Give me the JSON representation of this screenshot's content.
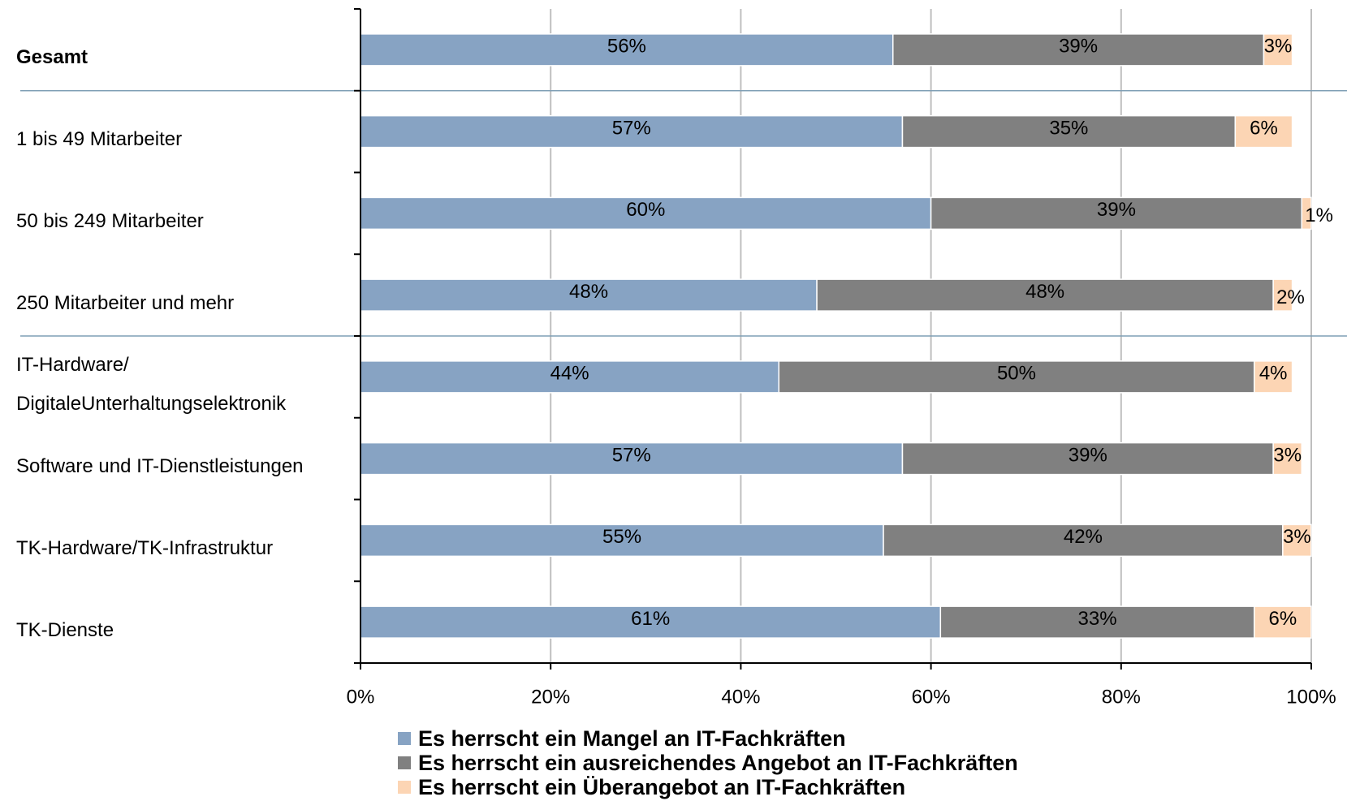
{
  "chart_data": {
    "type": "stacked-bar-horizontal",
    "categories": [
      "Gesamt",
      "1 bis 49 Mitarbeiter",
      "50 bis 249 Mitarbeiter",
      "250 Mitarbeiter und mehr",
      "IT-Hardware/\nDigitaleUnterhaltungselektronik",
      "Software und IT-Dienstleistungen",
      "TK-Hardware/TK-Infrastruktur",
      "TK-Dienste"
    ],
    "series": [
      {
        "name": "Es herrscht ein Mangel an IT-Fachkräften",
        "color": "#87a3c3",
        "values": [
          56,
          57,
          60,
          48,
          44,
          57,
          55,
          61
        ],
        "value_labels": [
          "56%",
          "57%",
          "60%",
          "48%",
          "44%",
          "57%",
          "55%",
          "61%"
        ]
      },
      {
        "name": "Es herrscht ein ausreichendes Angebot an IT-Fachkräften",
        "color": "#808080",
        "values": [
          39,
          35,
          39,
          48,
          50,
          39,
          42,
          33
        ],
        "value_labels": [
          "39%",
          "35%",
          "39%",
          "48%",
          "50%",
          "39%",
          "42%",
          "33%"
        ]
      },
      {
        "name": "Es herrscht ein Überangebot an IT-Fachkräften",
        "color": "#fcd5b4",
        "values": [
          3,
          6,
          1,
          2,
          4,
          3,
          3,
          6
        ],
        "value_labels": [
          "3%",
          "6%",
          "1%",
          "2%",
          "4%",
          "3%",
          "3%",
          "6%"
        ]
      }
    ],
    "xlim": [
      0,
      100
    ],
    "xticks": [
      {
        "value": 0,
        "label": "0%"
      },
      {
        "value": 20,
        "label": "20%"
      },
      {
        "value": 40,
        "label": "40%"
      },
      {
        "value": 60,
        "label": "60%"
      },
      {
        "value": 80,
        "label": "80%"
      },
      {
        "value": 100,
        "label": "100%"
      }
    ],
    "grid": true,
    "legend": "bottom"
  }
}
